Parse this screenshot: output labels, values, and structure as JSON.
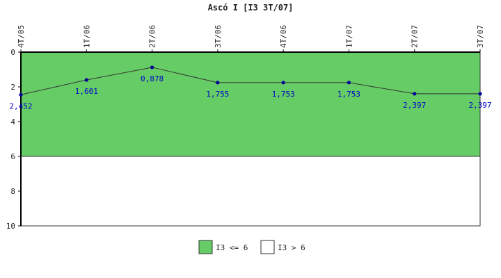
{
  "chart_data": {
    "type": "line",
    "title": "Ascó I [I3 3T/07]",
    "categories": [
      "4T/05",
      "1T/06",
      "2T/06",
      "3T/06",
      "4T/06",
      "1T/07",
      "2T/07",
      "3T/07"
    ],
    "series": [
      {
        "values": [
          2.452,
          1.601,
          0.878,
          1.755,
          1.753,
          1.753,
          2.397,
          2.397
        ],
        "labels": [
          "2,452",
          "1,601",
          "0,878",
          "1,755",
          "1,753",
          "1,753",
          "2,397",
          "2,397"
        ],
        "color": "#000099"
      }
    ],
    "ylim": [
      0,
      10
    ],
    "y_inverted": true,
    "yticks": [
      "0",
      "2",
      "4",
      "6",
      "8",
      "10"
    ],
    "bands": [
      {
        "name": "I3 <= 6",
        "from": 0,
        "to": 6,
        "color": "#66cc66"
      },
      {
        "name": "I3 > 6",
        "from": 6,
        "to": 10,
        "color": "#ffffff"
      }
    ],
    "legend_position": "bottom-center",
    "grid": false
  }
}
